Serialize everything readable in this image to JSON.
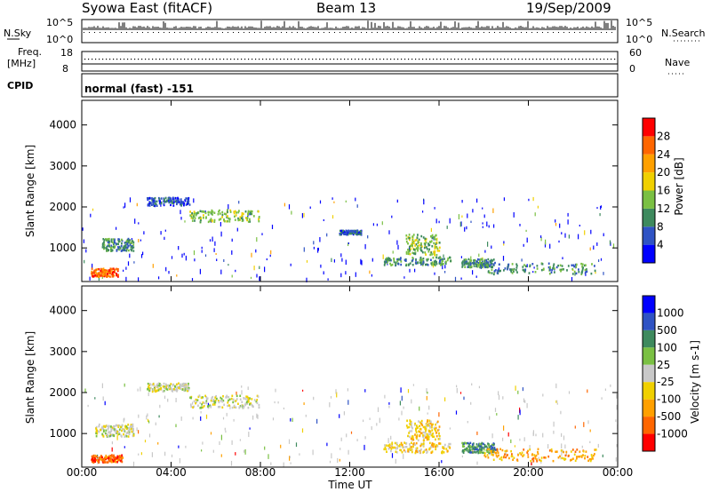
{
  "header": {
    "title": "Syowa East (fitACF)",
    "beam": "Beam 13",
    "date": "19/Sep/2009"
  },
  "top_panels": {
    "nsky_label": "N.Sky",
    "nsky_ticks": [
      "10^5",
      "10^0"
    ],
    "nsearch_label": "N.Search",
    "nsearch_ticks": [
      "10^5",
      "10^0"
    ],
    "freq_label_1": "Freq.",
    "freq_label_2": "[MHz]",
    "freq_ticks": [
      "18",
      "8"
    ],
    "nave_label": "Nave",
    "nave_ticks": [
      "60",
      "0"
    ],
    "cpid_label": "CPID",
    "cpid_value": "normal (fast) -151"
  },
  "x_axis": {
    "label": "Time UT",
    "ticks": [
      "00:00",
      "04:00",
      "08:00",
      "12:00",
      "16:00",
      "20:00",
      "00:00"
    ]
  },
  "power_colorbar": {
    "label": "Power [dB]",
    "ticks": [
      "4",
      "8",
      "12",
      "16",
      "20",
      "24",
      "28"
    ],
    "colors": [
      "#0000ff",
      "#2f53c4",
      "#3e8a5e",
      "#7ac043",
      "#f0d000",
      "#ffa000",
      "#ff6600",
      "#ff0000"
    ]
  },
  "velocity_colorbar": {
    "label": "Velocity [m s-1]",
    "ticks": [
      "1000",
      "500",
      "100",
      "25",
      "-25",
      "-100",
      "-500",
      "-1000"
    ],
    "colors": [
      "#0000ff",
      "#2f53c4",
      "#3e8a5e",
      "#7ac043",
      "#c8c8c8",
      "#f0d000",
      "#ffa000",
      "#ff6600",
      "#ff0000"
    ]
  },
  "chart_data": [
    {
      "type": "heatmap",
      "name": "power",
      "ylabel": "Slant Range [km]",
      "xlabel": "Time UT",
      "ylim": [
        180,
        4600
      ],
      "xlim": [
        0,
        24
      ],
      "yticks": [
        1000,
        2000,
        3000,
        4000
      ],
      "xticks": [
        0,
        4,
        8,
        12,
        16,
        20,
        24
      ],
      "regions": [
        {
          "x": [
            0.4,
            1.6
          ],
          "y": [
            320,
            520
          ],
          "level": 6
        },
        {
          "x": [
            0.9,
            2.3
          ],
          "y": [
            950,
            1250
          ],
          "level": 2
        },
        {
          "x": [
            2.9,
            4.8
          ],
          "y": [
            2050,
            2250
          ],
          "level": 1
        },
        {
          "x": [
            4.8,
            8.0
          ],
          "y": [
            1650,
            1950
          ],
          "level": 3
        },
        {
          "x": [
            11.5,
            12.5
          ],
          "y": [
            1350,
            1450
          ],
          "level": 1
        },
        {
          "x": [
            13.5,
            16.5
          ],
          "y": [
            600,
            800
          ],
          "level": 2
        },
        {
          "x": [
            14.5,
            16.0
          ],
          "y": [
            850,
            1350
          ],
          "level": 3
        },
        {
          "x": [
            17.0,
            18.5
          ],
          "y": [
            550,
            750
          ],
          "level": 2
        },
        {
          "x": [
            18.0,
            23.0
          ],
          "y": [
            380,
            650
          ],
          "level": 2
        }
      ]
    },
    {
      "type": "heatmap",
      "name": "velocity",
      "ylabel": "Slant Range [km]",
      "xlabel": "Time UT",
      "ylim": [
        180,
        4600
      ],
      "xlim": [
        0,
        24
      ],
      "yticks": [
        1000,
        2000,
        3000,
        4000
      ],
      "xticks": [
        0,
        4,
        8,
        12,
        16,
        20,
        24
      ],
      "regions": [
        {
          "x": [
            0.4,
            1.8
          ],
          "y": [
            320,
            500
          ],
          "level": 7
        },
        {
          "x": [
            0.6,
            2.3
          ],
          "y": [
            950,
            1250
          ],
          "level": 4
        },
        {
          "x": [
            2.9,
            4.8
          ],
          "y": [
            2050,
            2250
          ],
          "level": 4
        },
        {
          "x": [
            4.8,
            8.0
          ],
          "y": [
            1650,
            1950
          ],
          "level": 4
        },
        {
          "x": [
            13.5,
            16.5
          ],
          "y": [
            550,
            800
          ],
          "level": 5
        },
        {
          "x": [
            14.5,
            16.0
          ],
          "y": [
            850,
            1350
          ],
          "level": 5
        },
        {
          "x": [
            17.0,
            18.5
          ],
          "y": [
            550,
            800
          ],
          "level": 2
        },
        {
          "x": [
            18.0,
            23.0
          ],
          "y": [
            350,
            650
          ],
          "level": 6
        }
      ]
    }
  ]
}
